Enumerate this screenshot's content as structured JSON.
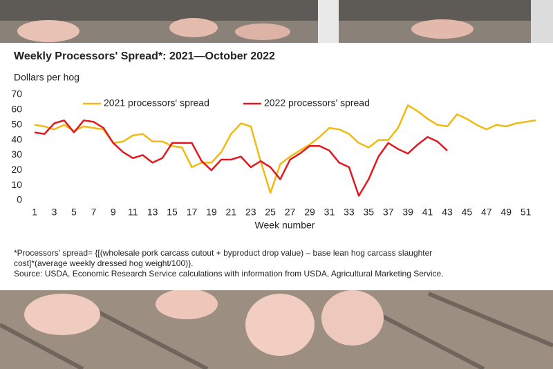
{
  "chart_data": {
    "type": "line",
    "title": "Weekly Processors' Spread*: 2021—October 2022",
    "y_label": "Dollars per hog",
    "x_label": "Week number",
    "x": [
      1,
      2,
      3,
      4,
      5,
      6,
      7,
      8,
      9,
      10,
      11,
      12,
      13,
      14,
      15,
      16,
      17,
      18,
      19,
      20,
      21,
      22,
      23,
      24,
      25,
      26,
      27,
      28,
      29,
      30,
      31,
      32,
      33,
      34,
      35,
      36,
      37,
      38,
      39,
      40,
      41,
      42,
      43,
      44,
      45,
      46,
      47,
      48,
      49,
      50,
      51,
      52
    ],
    "series": [
      {
        "name": "2021 processors' spread",
        "color": "#f2b90f",
        "values": [
          50,
          49,
          47,
          50,
          46,
          49,
          48,
          47,
          38,
          39,
          43,
          44,
          39,
          39,
          36,
          35,
          22,
          25,
          25,
          32,
          44,
          51,
          49,
          26,
          5,
          24,
          29,
          33,
          37,
          42,
          48,
          47,
          44,
          38,
          35,
          40,
          40,
          48,
          63,
          59,
          54,
          50,
          49,
          57,
          54,
          50,
          47,
          50,
          49,
          51,
          52,
          53
        ]
      },
      {
        "name": "2022 processors' spread",
        "color": "#e0191e",
        "values": [
          45,
          44,
          51,
          53,
          45,
          53,
          52,
          48,
          38,
          32,
          28,
          30,
          25,
          28,
          38,
          38,
          38,
          26,
          20,
          27,
          27,
          29,
          22,
          26,
          22,
          14,
          27,
          31,
          36,
          36,
          33,
          25,
          22,
          3,
          14,
          29,
          38,
          34,
          31,
          37,
          42,
          39,
          33,
          null,
          null,
          null,
          null,
          null,
          null,
          null,
          null,
          null
        ]
      }
    ],
    "xlim": [
      0.5,
      52.5
    ],
    "xticks": [
      1,
      3,
      5,
      7,
      9,
      11,
      13,
      15,
      17,
      19,
      21,
      23,
      25,
      27,
      29,
      31,
      33,
      35,
      37,
      39,
      41,
      43,
      45,
      47,
      49,
      51
    ],
    "ylim": [
      0,
      70
    ],
    "yticks": [
      0,
      10,
      20,
      30,
      40,
      50,
      60,
      70
    ],
    "grid": false,
    "legend": "top",
    "notes": [
      "*Processors' spread= {[(wholesale pork carcass cutout + byproduct drop value) – base lean hog carcass slaughter",
      "cost]*(average weekly dressed hog weight/100)}.",
      "Source: USDA, Economic Research Service calculations with information from USDA, Agricultural Marketing Service."
    ]
  }
}
